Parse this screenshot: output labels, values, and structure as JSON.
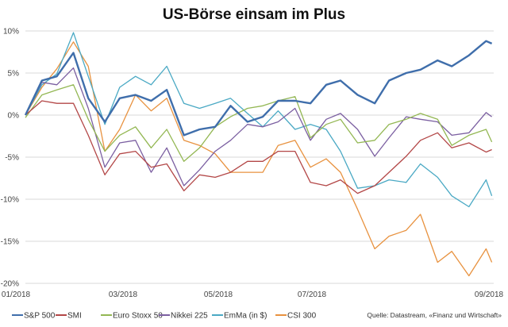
{
  "chart_data": {
    "type": "line",
    "title": "US-Börse einsam im Plus",
    "xlabel": "",
    "ylabel": "",
    "ylim": [
      -20,
      10
    ],
    "y_ticks": [
      "10%",
      "5%",
      "0%",
      "-5%",
      "-10%",
      "-15%",
      "-20%"
    ],
    "y_tick_values": [
      10,
      5,
      0,
      -5,
      -10,
      -15,
      -20
    ],
    "x_ticks": [
      {
        "label": "01/2018",
        "date": "2018-01-01"
      },
      {
        "label": "03/2018",
        "date": "2018-03-01"
      },
      {
        "label": "05/2018",
        "date": "2018-05-01"
      },
      {
        "label": "07/2018",
        "date": "2018-07-01"
      },
      {
        "label": "09/2018",
        "date": "2018-09-01"
      }
    ],
    "grid": "horizontal",
    "legend_position": "bottom",
    "source": "Quelle: Datastream, «Finanz und Wirtschaft»",
    "x": [
      "2018-01-01",
      "2018-01-11",
      "2018-01-20",
      "2018-01-30",
      "2018-02-08",
      "2018-02-18",
      "2018-02-27",
      "2018-03-09",
      "2018-03-19",
      "2018-03-29",
      "2018-04-09",
      "2018-04-19",
      "2018-04-29",
      "2018-05-09",
      "2018-05-20",
      "2018-05-30",
      "2018-06-09",
      "2018-06-20",
      "2018-06-30",
      "2018-07-06",
      "2018-07-11",
      "2018-07-17",
      "2018-07-23",
      "2018-07-28",
      "2018-08-03",
      "2018-08-08",
      "2018-08-14",
      "2018-08-19",
      "2018-08-25",
      "2018-08-31",
      "2018-09-02"
    ],
    "series": [
      {
        "name": "S&P 500",
        "color": "#3f6eab",
        "values": [
          0,
          4.1,
          4.6,
          7.4,
          2.0,
          -0.8,
          2.0,
          2.4,
          1.7,
          3.0,
          -2.4,
          -1.7,
          -1.4,
          1.1,
          -0.8,
          -0.2,
          1.7,
          1.7,
          1.4,
          3.6,
          4.1,
          2.4,
          1.4,
          4.1,
          5.0,
          5.4,
          6.5,
          5.8,
          7.1,
          8.8,
          8.5
        ]
      },
      {
        "name": "SMI",
        "color": "#b34747",
        "values": [
          0,
          1.7,
          1.4,
          1.4,
          -2.4,
          -7.1,
          -4.6,
          -4.3,
          -6.2,
          -5.8,
          -9.0,
          -7.1,
          -7.4,
          -6.8,
          -5.5,
          -5.5,
          -4.3,
          -4.3,
          -8.0,
          -8.4,
          -7.7,
          -9.3,
          -8.4,
          -6.8,
          -4.9,
          -3.0,
          -2.1,
          -3.9,
          -3.3,
          -4.4,
          -4.1
        ]
      },
      {
        "name": "Euro Stoxx 50",
        "color": "#93b753",
        "values": [
          -0.3,
          2.4,
          3.0,
          3.6,
          -0.5,
          -4.3,
          -2.4,
          -1.4,
          -3.9,
          -1.7,
          -5.5,
          -3.9,
          -1.4,
          -0.2,
          0.8,
          1.1,
          1.7,
          2.2,
          -2.7,
          -1.1,
          -0.5,
          -3.3,
          -3.0,
          -1.1,
          -0.5,
          0.2,
          -0.5,
          -3.6,
          -2.4,
          -1.7,
          -3.2
        ]
      },
      {
        "name": "Nikkei 225",
        "color": "#7b5fa1",
        "values": [
          0,
          3.9,
          3.6,
          5.6,
          0.8,
          -6.2,
          -3.3,
          -3.0,
          -6.8,
          -3.9,
          -8.4,
          -6.5,
          -4.3,
          -3.0,
          -1.1,
          -1.4,
          -0.8,
          0.8,
          -3.0,
          -0.5,
          0.2,
          -1.7,
          -4.9,
          -2.7,
          -0.2,
          -0.5,
          -0.8,
          -2.4,
          -2.1,
          0.3,
          -0.2
        ]
      },
      {
        "name": "EmMa (in $)",
        "color": "#4aa9c4",
        "values": [
          0,
          3.6,
          4.9,
          9.8,
          4.6,
          -1.1,
          3.3,
          4.6,
          3.6,
          5.8,
          1.4,
          0.8,
          1.4,
          2.0,
          0.2,
          -1.4,
          0.5,
          -1.7,
          -1.1,
          -1.7,
          -4.3,
          -8.7,
          -8.4,
          -7.7,
          -8.0,
          -5.8,
          -7.4,
          -9.6,
          -10.9,
          -7.7,
          -9.6
        ]
      },
      {
        "name": "CSI 300",
        "color": "#e8923f",
        "values": [
          0,
          3.3,
          5.5,
          8.7,
          5.8,
          -4.3,
          -1.7,
          2.4,
          0.5,
          2.0,
          -3.0,
          -3.6,
          -4.6,
          -6.8,
          -6.8,
          -6.8,
          -3.6,
          -3.0,
          -6.2,
          -5.2,
          -6.8,
          -11.2,
          -15.9,
          -14.4,
          -13.7,
          -11.8,
          -17.5,
          -16.2,
          -19.1,
          -15.9,
          -17.5
        ]
      }
    ]
  }
}
